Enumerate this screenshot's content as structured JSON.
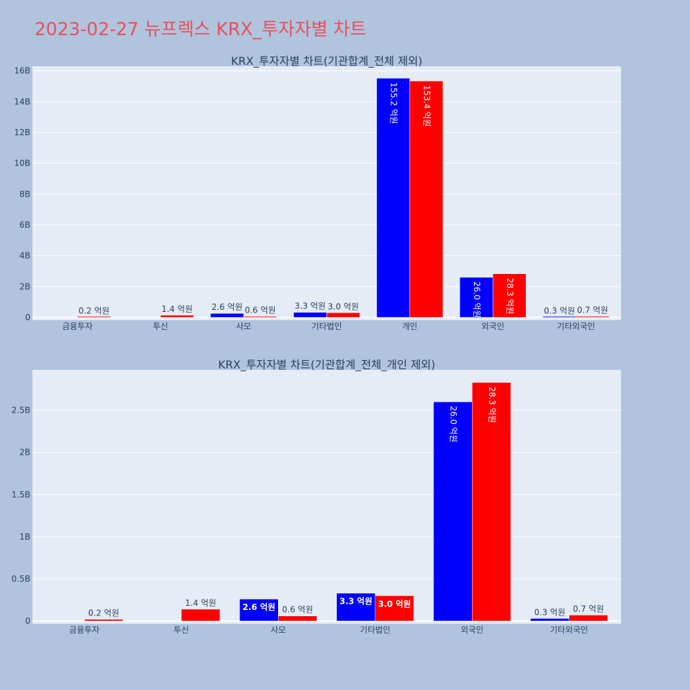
{
  "page": {
    "title": "2023-02-27 뉴프렉스 KRX_투자자별 차트"
  },
  "colors": {
    "buy": "#0000ff",
    "sell": "#ff0000",
    "plot_bg": "#e5ecf6",
    "page_bg": "#b0c4de",
    "text": "#2a3f5f"
  },
  "chart_data": [
    {
      "type": "bar",
      "title": "KRX_투자자별 차트(기관합계_전체 제외)",
      "categories": [
        "금융투자",
        "투신",
        "사모",
        "기타법인",
        "개인",
        "외국인",
        "기타외국인"
      ],
      "series": [
        {
          "color": "#0000ff",
          "values": [
            0,
            0,
            260000000,
            330000000,
            15520000000,
            2600000000,
            30000000
          ],
          "labels": [
            "",
            "",
            "2.6 억원",
            "3.3 억원",
            "155.2 억원",
            "26.0 억원",
            "0.3 억원"
          ]
        },
        {
          "color": "#ff0000",
          "values": [
            20000000,
            140000000,
            60000000,
            300000000,
            15340000000,
            2830000000,
            70000000
          ],
          "labels": [
            "0.2 억원",
            "1.4 억원",
            "0.6 억원",
            "3.0 억원",
            "153.4 억원",
            "28.3 억원",
            "0.7 억원"
          ]
        }
      ],
      "ylim": [
        0,
        16300000000
      ],
      "yticks": [
        0,
        2000000000,
        4000000000,
        6000000000,
        8000000000,
        10000000000,
        12000000000,
        14000000000,
        16000000000
      ],
      "yticklabels": [
        "0",
        "2B",
        "4B",
        "6B",
        "8B",
        "10B",
        "12B",
        "14B",
        "16B"
      ],
      "grid": true,
      "xlabel": "",
      "ylabel": ""
    },
    {
      "type": "bar",
      "title": "KRX_투자자별 차트(기관합계_전체_개인 제외)",
      "categories": [
        "금융투자",
        "투신",
        "사모",
        "기타법인",
        "외국인",
        "기타외국인"
      ],
      "series": [
        {
          "color": "#0000ff",
          "values": [
            0,
            0,
            260000000,
            330000000,
            2600000000,
            30000000
          ],
          "labels": [
            "",
            "",
            "2.6 억원",
            "3.3 억원",
            "26.0 억원",
            "0.3 억원"
          ]
        },
        {
          "color": "#ff0000",
          "values": [
            20000000,
            140000000,
            60000000,
            300000000,
            2830000000,
            70000000
          ],
          "labels": [
            "0.2 억원",
            "1.4 억원",
            "0.6 억원",
            "3.0 억원",
            "28.3 억원",
            "0.7 억원"
          ]
        }
      ],
      "ylim": [
        0,
        2980000000
      ],
      "yticks": [
        0,
        500000000,
        1000000000,
        1500000000,
        2000000000,
        2500000000
      ],
      "yticklabels": [
        "0",
        "0.5B",
        "1B",
        "1.5B",
        "2B",
        "2.5B"
      ],
      "grid": true,
      "xlabel": "",
      "ylabel": ""
    }
  ]
}
